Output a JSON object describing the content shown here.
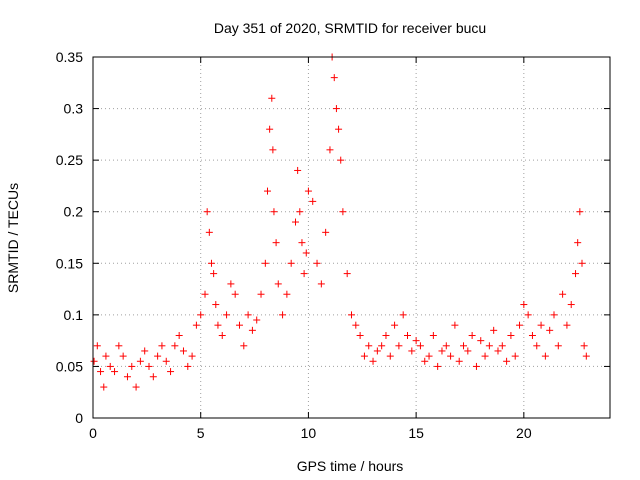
{
  "chart_data": {
    "type": "scatter",
    "title": "Day 351 of 2020, SRMTID for receiver bucu",
    "xlabel": "GPS time / hours",
    "ylabel": "SRMTID / TECUs",
    "xlim": [
      0,
      24
    ],
    "ylim": [
      0,
      0.35
    ],
    "xticks": [
      0,
      5,
      10,
      15,
      20
    ],
    "xtick_labels": [
      "0",
      "5",
      "10",
      "15",
      "20"
    ],
    "yticks": [
      0,
      0.05,
      0.1,
      0.15,
      0.2,
      0.25,
      0.3,
      0.35
    ],
    "ytick_labels": [
      "0",
      "0.05",
      "0.1",
      "0.15",
      "0.2",
      "0.25",
      "0.3",
      "0.35"
    ],
    "grid": true,
    "marker": "+",
    "color": "#ff0000",
    "series": [
      {
        "name": "SRMTID",
        "x": [
          0.05,
          0.2,
          0.35,
          0.5,
          0.6,
          0.8,
          1.0,
          1.2,
          1.4,
          1.6,
          1.8,
          2.0,
          2.2,
          2.4,
          2.6,
          2.8,
          3.0,
          3.2,
          3.4,
          3.6,
          3.8,
          4.0,
          4.2,
          4.4,
          4.6,
          4.8,
          5.0,
          5.2,
          5.3,
          5.4,
          5.5,
          5.6,
          5.7,
          5.8,
          6.0,
          6.2,
          6.4,
          6.6,
          6.8,
          7.0,
          7.2,
          7.4,
          7.6,
          7.8,
          8.0,
          8.1,
          8.2,
          8.3,
          8.35,
          8.4,
          8.5,
          8.6,
          8.8,
          9.0,
          9.2,
          9.4,
          9.5,
          9.6,
          9.7,
          9.8,
          9.9,
          10.0,
          10.2,
          10.4,
          10.6,
          10.8,
          11.0,
          11.1,
          11.2,
          11.3,
          11.4,
          11.5,
          11.6,
          11.8,
          12.0,
          12.2,
          12.4,
          12.6,
          12.8,
          13.0,
          13.2,
          13.4,
          13.6,
          13.8,
          14.0,
          14.2,
          14.4,
          14.6,
          14.8,
          15.0,
          15.2,
          15.4,
          15.6,
          15.8,
          16.0,
          16.2,
          16.4,
          16.6,
          16.8,
          17.0,
          17.2,
          17.4,
          17.6,
          17.8,
          18.0,
          18.2,
          18.4,
          18.6,
          18.8,
          19.0,
          19.2,
          19.4,
          19.6,
          19.8,
          20.0,
          20.2,
          20.4,
          20.6,
          20.8,
          21.0,
          21.2,
          21.4,
          21.6,
          21.8,
          22.0,
          22.2,
          22.4,
          22.5,
          22.6,
          22.7,
          22.8,
          22.9
        ],
        "y": [
          0.055,
          0.07,
          0.045,
          0.03,
          0.06,
          0.05,
          0.045,
          0.07,
          0.06,
          0.04,
          0.05,
          0.03,
          0.055,
          0.065,
          0.05,
          0.04,
          0.06,
          0.07,
          0.055,
          0.045,
          0.07,
          0.08,
          0.065,
          0.05,
          0.06,
          0.09,
          0.1,
          0.12,
          0.2,
          0.18,
          0.15,
          0.14,
          0.11,
          0.09,
          0.08,
          0.1,
          0.13,
          0.12,
          0.09,
          0.07,
          0.1,
          0.085,
          0.095,
          0.12,
          0.15,
          0.22,
          0.28,
          0.31,
          0.26,
          0.2,
          0.17,
          0.13,
          0.1,
          0.12,
          0.15,
          0.19,
          0.24,
          0.2,
          0.17,
          0.14,
          0.16,
          0.22,
          0.21,
          0.15,
          0.13,
          0.18,
          0.26,
          0.35,
          0.33,
          0.3,
          0.28,
          0.25,
          0.2,
          0.14,
          0.1,
          0.09,
          0.08,
          0.06,
          0.07,
          0.055,
          0.065,
          0.07,
          0.08,
          0.06,
          0.09,
          0.07,
          0.1,
          0.08,
          0.065,
          0.075,
          0.07,
          0.055,
          0.06,
          0.08,
          0.05,
          0.065,
          0.07,
          0.06,
          0.09,
          0.055,
          0.07,
          0.065,
          0.08,
          0.05,
          0.075,
          0.06,
          0.07,
          0.085,
          0.065,
          0.07,
          0.055,
          0.08,
          0.06,
          0.09,
          0.11,
          0.1,
          0.08,
          0.07,
          0.09,
          0.06,
          0.085,
          0.1,
          0.07,
          0.12,
          0.09,
          0.11,
          0.14,
          0.17,
          0.2,
          0.15,
          0.07,
          0.06
        ]
      }
    ]
  }
}
